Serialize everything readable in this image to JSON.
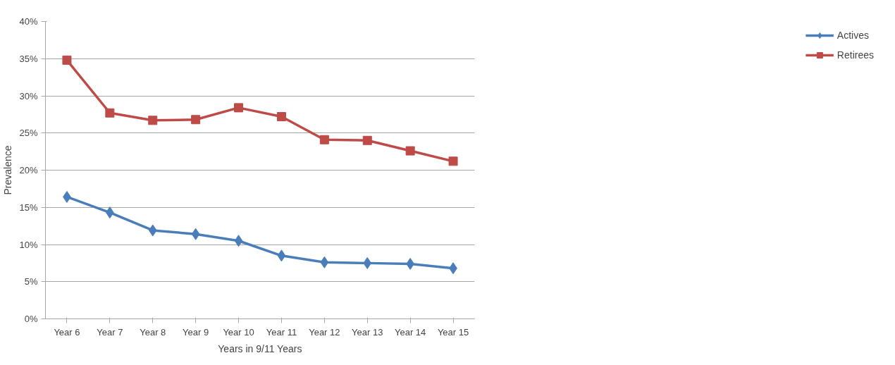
{
  "chart_data": {
    "type": "line",
    "xlabel": "Years in 9/11 Years",
    "ylabel": "Prevalence",
    "categories": [
      "Year 6",
      "Year 7",
      "Year 8",
      "Year 9",
      "Year 10",
      "Year 11",
      "Year 12",
      "Year 13",
      "Year 14",
      "Year 15"
    ],
    "series": [
      {
        "name": "Actives",
        "color": "#4a7ebb",
        "marker": "diamond",
        "values": [
          16.4,
          14.3,
          11.9,
          11.4,
          10.5,
          8.5,
          7.6,
          7.5,
          7.4,
          6.8
        ]
      },
      {
        "name": "Retirees",
        "color": "#be4b48",
        "marker": "square",
        "values": [
          34.8,
          27.7,
          26.7,
          26.8,
          28.4,
          27.2,
          24.1,
          24.0,
          22.6,
          21.2
        ]
      }
    ],
    "ylim": [
      0,
      40
    ],
    "yticks": [
      {
        "value": 0,
        "label": "0%"
      },
      {
        "value": 5,
        "label": "5%"
      },
      {
        "value": 10,
        "label": "10%"
      },
      {
        "value": 15,
        "label": "15%"
      },
      {
        "value": 20,
        "label": "20%"
      },
      {
        "value": 25,
        "label": "25%"
      },
      {
        "value": 30,
        "label": "30%"
      },
      {
        "value": 35,
        "label": "35%"
      },
      {
        "value": 40,
        "label": "40%"
      }
    ],
    "grid": "y",
    "legend": "right",
    "line_style": "solid"
  }
}
